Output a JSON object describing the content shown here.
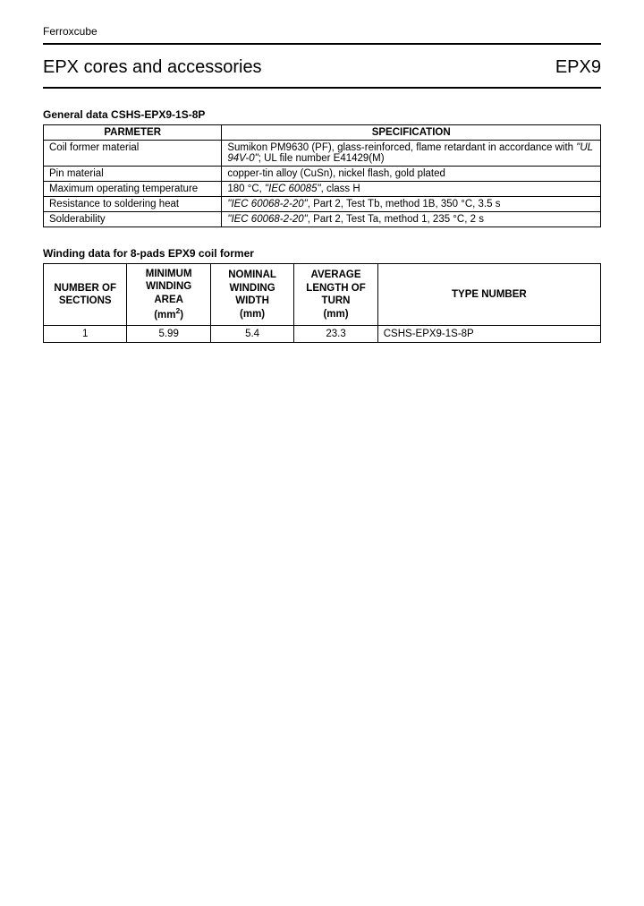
{
  "brand": "Ferroxcube",
  "title_left": "EPX cores and accessories",
  "title_right": "EPX9",
  "section1": {
    "heading": "General data CSHS-EPX9-1S-8P",
    "columns": [
      "PARMETER",
      "SPECIFICATION"
    ],
    "rows": [
      {
        "param": "Coil former material",
        "spec_pre": "Sumikon PM9630 (PF), glass-reinforced, flame retardant in accordance with ",
        "spec_italic": "\"UL 94V-0\"",
        "spec_post": "; UL file number E41429(M)"
      },
      {
        "param": "Pin material",
        "spec_pre": "copper-tin alloy (CuSn), nickel flash, gold plated",
        "spec_italic": "",
        "spec_post": ""
      },
      {
        "param": "Maximum operating temperature",
        "spec_pre": "180 °C, ",
        "spec_italic": "\"IEC 60085\"",
        "spec_post": ", class H"
      },
      {
        "param": "Resistance to soldering heat",
        "spec_pre": "",
        "spec_italic": "\"IEC 60068-2-20\"",
        "spec_post": ", Part 2, Test Tb, method 1B, 350 °C, 3.5 s"
      },
      {
        "param": "Solderability",
        "spec_pre": "",
        "spec_italic": "\"IEC 60068-2-20\"",
        "spec_post": ", Part 2, Test Ta, method 1, 235 °C, 2 s"
      }
    ]
  },
  "section2": {
    "heading": "Winding data for 8-pads EPX9 coil former",
    "columns": {
      "c1": "NUMBER OF SECTIONS",
      "c2_l1": "MINIMUM",
      "c2_l2": "WINDING",
      "c2_l3": "AREA",
      "c2_unit_pre": "(mm",
      "c2_unit_sup": "2",
      "c2_unit_post": ")",
      "c3_l1": "NOMINAL",
      "c3_l2": "WINDING",
      "c3_l3": "WIDTH",
      "c3_unit": "(mm)",
      "c4_l1": "AVERAGE",
      "c4_l2": "LENGTH OF",
      "c4_l3": "TURN",
      "c4_unit": "(mm)",
      "c5": "TYPE NUMBER"
    },
    "rows": [
      {
        "sections": "1",
        "area": "5.99",
        "width": "5.4",
        "turn": "23.3",
        "type": "CSHS-EPX9-1S-8P"
      }
    ]
  },
  "colors": {
    "text": "#000000",
    "background": "#ffffff",
    "border": "#000000"
  }
}
